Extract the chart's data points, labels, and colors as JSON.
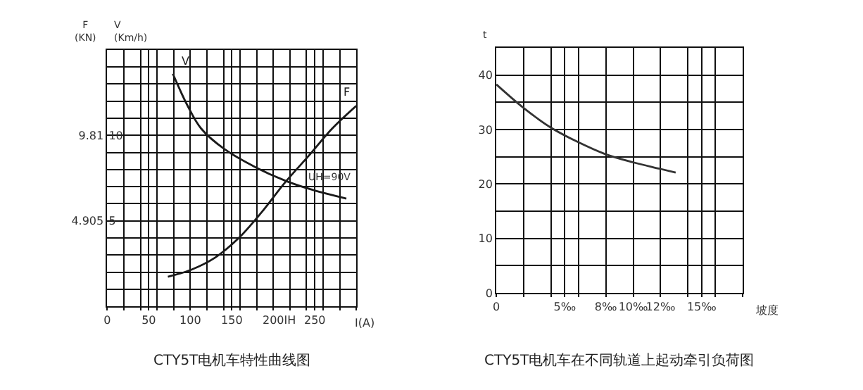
{
  "chart_data": [
    {
      "type": "line",
      "title": "CTY5T电机车特性曲线图",
      "xlabel": "I(A)",
      "ylabel": "F\n(KN)",
      "y2label": "V\n(Km/h)",
      "xlim": [
        0,
        300
      ],
      "xticks": [
        0,
        {
          "value": 20,
          "label": null
        },
        {
          "value": 40,
          "label": null
        },
        50,
        {
          "value": 60,
          "label": null
        },
        {
          "value": 80,
          "label": null
        },
        100,
        {
          "value": 120,
          "label": null
        },
        {
          "value": 140,
          "label": null
        },
        150,
        {
          "value": 160,
          "label": null
        },
        {
          "value": 180,
          "label": null
        },
        200,
        {
          "value": 220,
          "label": "IH"
        },
        {
          "value": 240,
          "label": null
        },
        250,
        {
          "value": 260,
          "label": null
        },
        {
          "value": 280,
          "label": null
        },
        {
          "value": 300,
          "label": null
        }
      ],
      "ylim": [
        0,
        14.715
      ],
      "yticks": [
        4.905,
        9.81
      ],
      "y2lim": [
        0,
        15
      ],
      "y2ticks": [
        {
          "value": 1,
          "label": null
        },
        {
          "value": 2,
          "label": null
        },
        {
          "value": 3,
          "label": null
        },
        {
          "value": 4,
          "label": null
        },
        5,
        {
          "value": 6,
          "label": null
        },
        {
          "value": 7,
          "label": null
        },
        {
          "value": 8,
          "label": null
        },
        {
          "value": 9,
          "label": null
        },
        10,
        {
          "value": 11,
          "label": null
        },
        {
          "value": 12,
          "label": null
        },
        {
          "value": 13,
          "label": null
        },
        {
          "value": 14,
          "label": null
        },
        {
          "value": 15,
          "label": null
        }
      ],
      "grid": true,
      "legend": false,
      "marker": "none",
      "series": [
        {
          "name": "V",
          "color": "#1a1a1a",
          "axis": "y2",
          "x": [
            79,
            96,
            113,
            141,
            180,
            217,
            248,
            288
          ],
          "values": [
            13.6,
            11.8,
            10.4,
            9.2,
            8.1,
            7.3,
            6.8,
            6.3
          ]
        },
        {
          "name": "F",
          "color": "#1a1a1a",
          "axis": "y",
          "x": [
            73,
            101,
            130,
            158,
            186,
            214,
            242,
            271,
            300
          ],
          "values": [
            1.7,
            2.1,
            2.8,
            3.9,
            5.4,
            7.1,
            8.6,
            10.2,
            11.5
          ]
        }
      ],
      "annotations": [
        "UH=90V"
      ]
    },
    {
      "type": "line",
      "title": "CTY5T电机车在不同轨道上起动牵引负荷图",
      "xlabel": "坡度",
      "ylabel": "t",
      "xlim": [
        0,
        18
      ],
      "xticks": [
        0,
        {
          "value": 2,
          "label": null
        },
        {
          "value": 4,
          "label": null
        },
        {
          "value": 5,
          "label": "5‰"
        },
        {
          "value": 6,
          "label": null
        },
        {
          "value": 8,
          "label": "8‰"
        },
        {
          "value": 10,
          "label": "10‰"
        },
        {
          "value": 12,
          "label": "12‰"
        },
        {
          "value": 14,
          "label": null
        },
        {
          "value": 15,
          "label": "15‰"
        },
        {
          "value": 16,
          "label": null
        },
        {
          "value": 18,
          "label": null
        }
      ],
      "ylim": [
        0,
        45
      ],
      "yticks": [
        0,
        {
          "value": 5,
          "label": null
        },
        10,
        {
          "value": 15,
          "label": null
        },
        20,
        {
          "value": 25,
          "label": null
        },
        30,
        {
          "value": 35,
          "label": null
        },
        40,
        {
          "value": 45,
          "label": null
        }
      ],
      "grid": true,
      "legend": false,
      "marker": "none",
      "series": [
        {
          "color": "#333333",
          "x": [
            0,
            1.98,
            3.96,
            5.97,
            7.95,
            9.97,
            11.95,
            13.1
          ],
          "values": [
            38.3,
            34.0,
            30.4,
            27.7,
            25.5,
            24.0,
            22.8,
            22.1
          ]
        }
      ]
    }
  ]
}
